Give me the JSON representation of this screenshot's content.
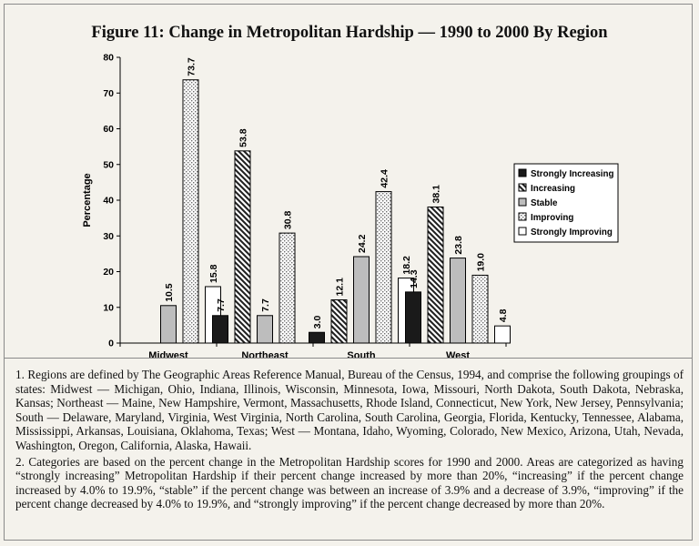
{
  "chart_data": {
    "type": "bar",
    "title": "Figure 11: Change in Metropolitan Hardship — 1990 to 2000 By Region",
    "ylabel": "Percentage",
    "xlabel": "",
    "ylim": [
      0,
      80
    ],
    "yticks": [
      0,
      10,
      20,
      30,
      40,
      50,
      60,
      70,
      80
    ],
    "grid": false,
    "legend_position": "right",
    "categories": [
      "Midwest",
      "Northeast",
      "South",
      "West"
    ],
    "series": [
      {
        "name": "Strongly Increasing",
        "values": [
          null,
          7.7,
          3.0,
          14.3
        ],
        "labels": [
          "",
          "7.7",
          "3.0",
          "14.3"
        ],
        "pattern": "solid-black"
      },
      {
        "name": "Increasing",
        "values": [
          null,
          53.8,
          12.1,
          38.1
        ],
        "labels": [
          "",
          "53.8",
          "12.1",
          "38.1"
        ],
        "pattern": "diagonal-hatch"
      },
      {
        "name": "Stable",
        "values": [
          10.5,
          7.7,
          24.2,
          23.8
        ],
        "labels": [
          "10.5",
          "7.7",
          "24.2",
          "23.8"
        ],
        "pattern": "solid-gray"
      },
      {
        "name": "Improving",
        "values": [
          73.7,
          30.8,
          42.4,
          19.0
        ],
        "labels": [
          "73.7",
          "30.8",
          "42.4",
          "19.0"
        ],
        "pattern": "dotted"
      },
      {
        "name": "Strongly Improving",
        "values": [
          15.8,
          null,
          18.2,
          4.8
        ],
        "labels": [
          "15.8",
          "",
          "18.2",
          "4.8"
        ],
        "pattern": "white"
      }
    ],
    "colors": {
      "solid_black": "#1a1a1a",
      "solid_gray": "#bdbdbd",
      "hatch": "#222222",
      "dot": "#777777",
      "white": "#ffffff"
    }
  },
  "notes": [
    "1. Regions are defined by The Geographic Areas Reference Manual, Bureau of the Census, 1994, and comprise the following groupings of states: Midwest — Michigan, Ohio, Indiana, Illinois, Wisconsin, Minnesota, Iowa, Missouri, North Dakota, South Dakota, Nebraska, Kansas; Northeast — Maine, New Hampshire, Vermont, Massachusetts, Rhode Island, Connecticut, New York, New Jersey, Pennsylvania; South — Delaware, Maryland, Virginia, West Virginia, North Carolina, South Carolina, Georgia, Florida, Kentucky, Tennessee, Alabama, Mississippi, Arkansas, Louisiana, Oklahoma, Texas; West — Montana, Idaho, Wyoming, Colorado, New Mexico, Arizona, Utah, Nevada, Washington, Oregon, California, Alaska, Hawaii.",
    "2. Categories are based on the percent change in the Metropolitan Hardship scores for 1990 and 2000. Areas are categorized as having “strongly increasing” Metropolitan Hardship if their percent change increased by more than 20%, “increasing” if the percent change increased by 4.0% to 19.9%, “stable” if the percent change was between an increase of 3.9% and a decrease of 3.9%, “improving” if the percent change decreased by 4.0% to 19.9%, and “strongly improving” if the percent change decreased by more than 20%."
  ]
}
